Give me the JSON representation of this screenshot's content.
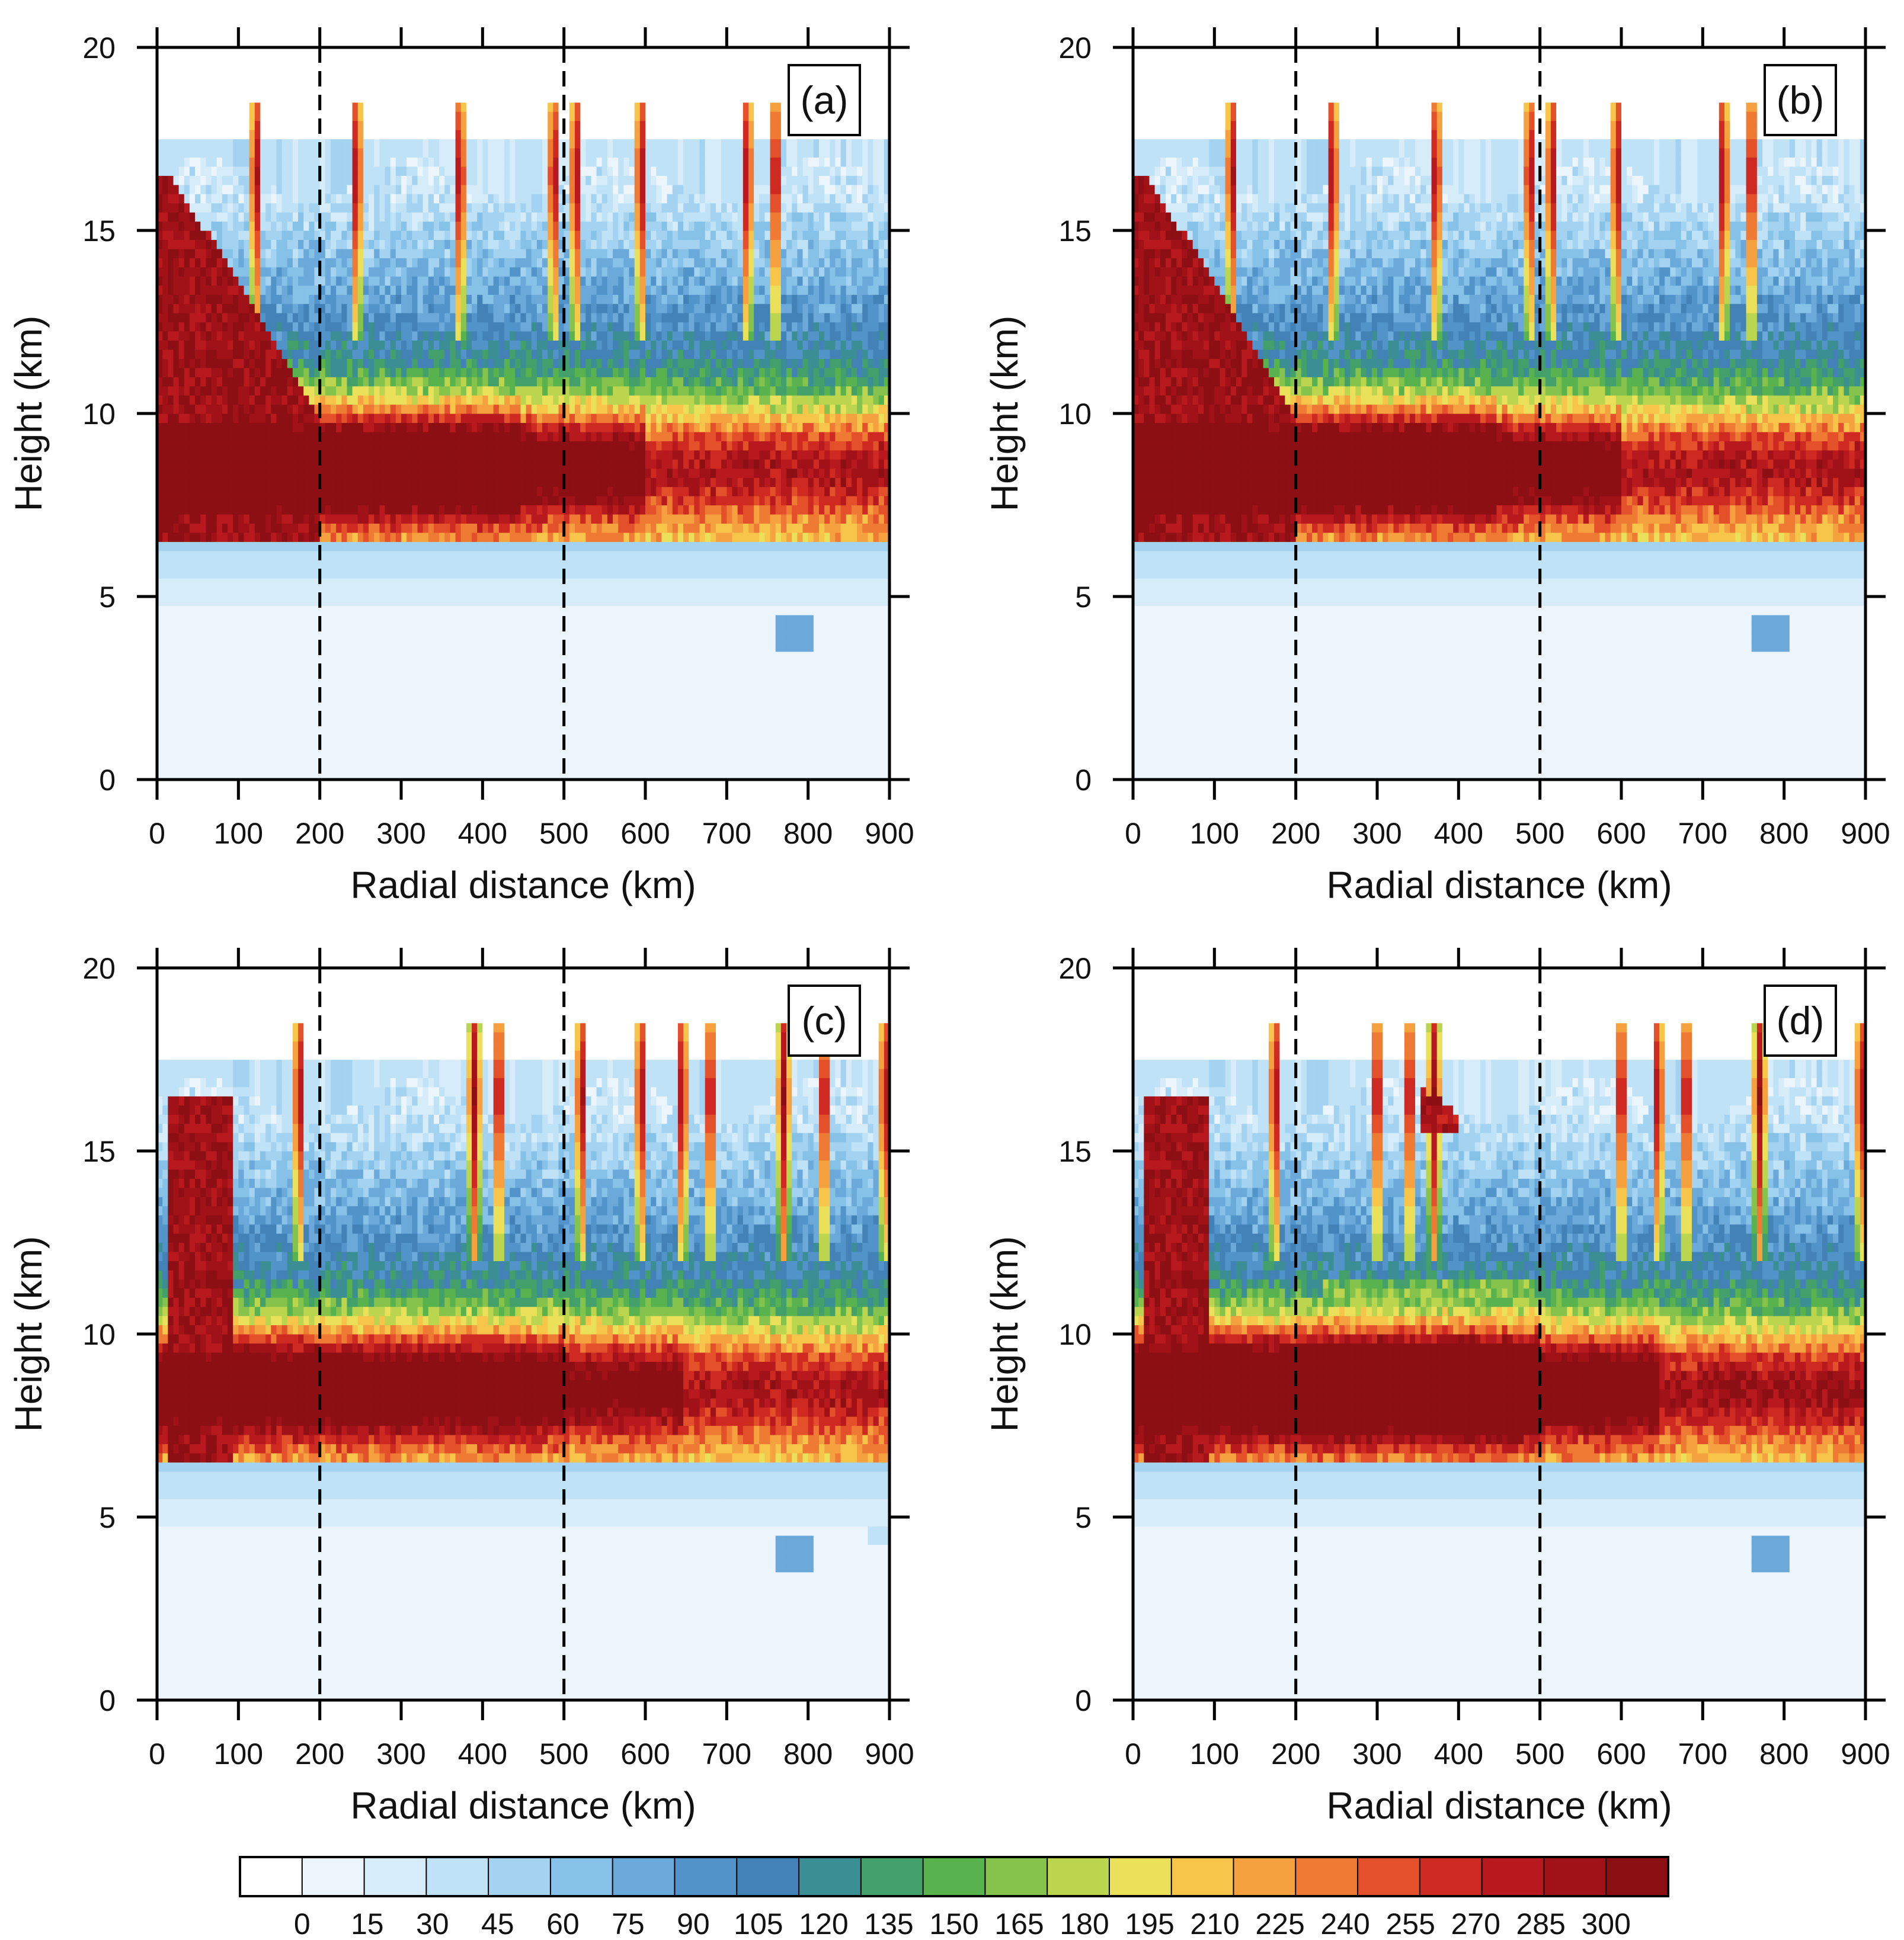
{
  "chart_data": {
    "type": "heatmap",
    "panels": [
      {
        "id": "a",
        "label": "(a)",
        "variant": "a"
      },
      {
        "id": "b",
        "label": "(b)",
        "variant": "a"
      },
      {
        "id": "c",
        "label": "(c)",
        "variant": "c"
      },
      {
        "id": "d",
        "label": "(d)",
        "variant": "d"
      }
    ],
    "xlabel": "Radial distance (km)",
    "ylabel": "Height (km)",
    "xlim": [
      0,
      900
    ],
    "ylim": [
      0,
      20
    ],
    "xticks": [
      0,
      100,
      200,
      300,
      400,
      500,
      600,
      700,
      800,
      900
    ],
    "yticks": [
      0,
      5,
      10,
      15,
      20
    ],
    "reference_lines_x": [
      200,
      500
    ],
    "colorbar": {
      "levels": [
        0,
        15,
        30,
        45,
        60,
        75,
        90,
        105,
        120,
        135,
        150,
        165,
        180,
        195,
        210,
        225,
        240,
        255,
        270,
        285,
        300
      ],
      "colors": [
        "#ffffff",
        "#ecf5fc",
        "#d6ecf9",
        "#bfe2f6",
        "#a3d3f0",
        "#86c1e7",
        "#6aa9da",
        "#5294c9",
        "#4282b6",
        "#3b8f94",
        "#43a06a",
        "#58b34e",
        "#86c34d",
        "#bcd54e",
        "#ebe05a",
        "#f8c54b",
        "#f6a13f",
        "#ef7a33",
        "#e3502a",
        "#cf2a22",
        "#b8191e",
        "#a01218",
        "#8c0f14"
      ]
    },
    "field_description": "Reflectivity-like field, 0 km to 20 km height versus 0 km to 900 km radial distance; strongest values (>300) near eyewall r<100 km between 7 and 16 km height; bright band of elevated values near 7.5-11 km; scattered convective towers reaching 17-19 km."
  }
}
